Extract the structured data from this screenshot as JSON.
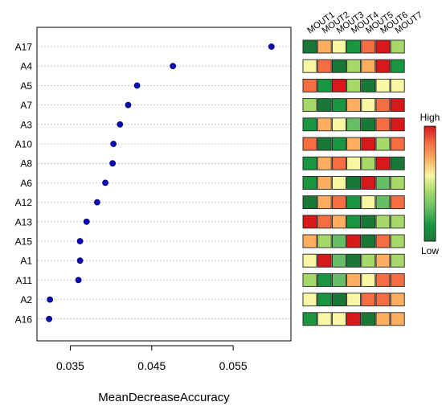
{
  "chart_data": {
    "type": "scatter",
    "xlabel": "MeanDecreaseAccuracy",
    "ylabel": "",
    "title": "",
    "x_ticks": [
      0.035,
      0.045,
      0.055
    ],
    "xlim": [
      0.0315,
      0.0614
    ],
    "grid": true,
    "point_color": "#0a0ab4",
    "variables": [
      {
        "name": "A17",
        "value": 0.0597
      },
      {
        "name": "A4",
        "value": 0.0476
      },
      {
        "name": "A5",
        "value": 0.0432
      },
      {
        "name": "A7",
        "value": 0.0421
      },
      {
        "name": "A3",
        "value": 0.0411
      },
      {
        "name": "A10",
        "value": 0.0403
      },
      {
        "name": "A8",
        "value": 0.0402
      },
      {
        "name": "A6",
        "value": 0.0393
      },
      {
        "name": "A12",
        "value": 0.0383
      },
      {
        "name": "A13",
        "value": 0.037
      },
      {
        "name": "A15",
        "value": 0.0362
      },
      {
        "name": "A1",
        "value": 0.0362
      },
      {
        "name": "A11",
        "value": 0.036
      },
      {
        "name": "A2",
        "value": 0.0325
      },
      {
        "name": "A16",
        "value": 0.0324
      }
    ],
    "heatmap": {
      "columns": [
        "MOUT1",
        "MOUT2",
        "MOUT3",
        "MOUT4",
        "MOUT5",
        "MOUT6",
        "MOUT7"
      ],
      "colors": {
        "1": "#1a9641",
        "2": "#66bd63",
        "3": "#a6d96a",
        "4": "#f7f7a6",
        "5": "#fdae61",
        "6": "#f46d43",
        "7": "#d7191c",
        "0": "#1a7837"
      },
      "rows": [
        [
          0,
          5,
          4,
          1,
          6,
          7,
          3
        ],
        [
          4,
          6,
          0,
          3,
          5,
          7,
          1
        ],
        [
          6,
          1,
          7,
          3,
          0,
          4,
          4
        ],
        [
          3,
          0,
          1,
          5,
          4,
          6,
          7
        ],
        [
          1,
          5,
          4,
          2,
          0,
          6,
          7
        ],
        [
          6,
          0,
          1,
          5,
          7,
          3,
          6
        ],
        [
          1,
          5,
          6,
          4,
          3,
          7,
          0
        ],
        [
          1,
          5,
          4,
          0,
          7,
          2,
          3
        ],
        [
          0,
          5,
          6,
          1,
          4,
          2,
          6
        ],
        [
          7,
          6,
          5,
          1,
          0,
          3,
          3
        ],
        [
          5,
          3,
          2,
          7,
          0,
          6,
          3
        ],
        [
          4,
          7,
          2,
          0,
          3,
          5,
          3
        ],
        [
          3,
          1,
          2,
          5,
          4,
          6,
          6
        ],
        [
          4,
          1,
          0,
          4,
          6,
          6,
          5
        ],
        [
          1,
          4,
          4,
          7,
          0,
          5,
          5
        ]
      ]
    },
    "legend": {
      "title": "High",
      "bottom_label": "Low",
      "gradient": [
        "#d7191c",
        "#f46d43",
        "#fdae61",
        "#f7f7a6",
        "#a6d96a",
        "#66bd63",
        "#1a9641",
        "#1a7837"
      ]
    }
  }
}
